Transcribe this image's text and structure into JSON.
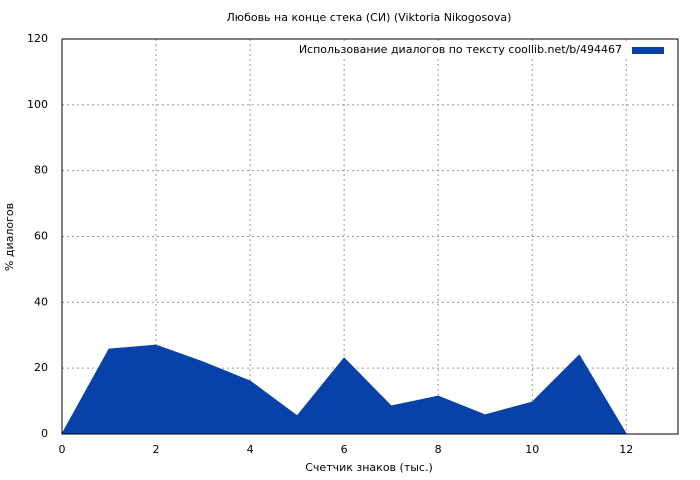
{
  "chart_data": {
    "type": "area",
    "title": "Любовь на конце стека (СИ) (Viktoria Nikogosova)",
    "xlabel": "Счетчик знаков (тыс.)",
    "ylabel": "% диалогов",
    "x": [
      0,
      1,
      2,
      3,
      4,
      5,
      6,
      7,
      8,
      9,
      10,
      11,
      12
    ],
    "series": [
      {
        "name": "Использование диалогов по тексту  coollib.net/b/494467",
        "color": "#0842a8",
        "values": [
          0,
          25.8,
          27,
          21.9,
          16.1,
          5.5,
          23.1,
          8.5,
          11.5,
          5.8,
          9.7,
          24,
          0
        ]
      }
    ],
    "xlim": [
      0,
      13.1
    ],
    "xticks": [
      0,
      2,
      4,
      6,
      8,
      10,
      12
    ],
    "ylim": [
      0,
      120
    ],
    "yticks": [
      0,
      20,
      40,
      60,
      80,
      100,
      120
    ],
    "grid": true,
    "legend": "top-right"
  }
}
